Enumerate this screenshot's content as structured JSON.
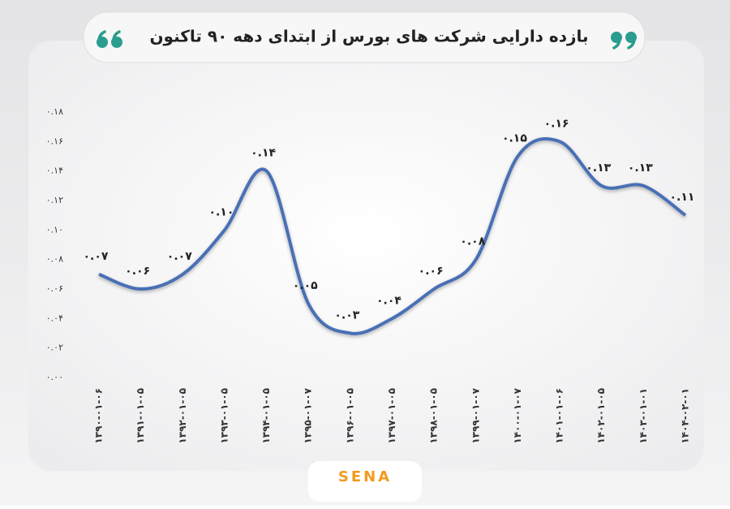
{
  "chart_data": {
    "type": "line",
    "title": "بازده دارایی شرکت های بورس از ابتدای دهه ۹۰ تاکنون",
    "source": "SENA",
    "categories": [
      "۱۳۹۰-۰۱-۰۶",
      "۱۳۹۱-۰۱-۰۵",
      "۱۳۹۲-۰۱-۰۵",
      "۱۳۹۳-۰۱-۰۵",
      "۱۳۹۴-۰۱-۰۵",
      "۱۳۹۵-۰۱-۰۷",
      "۱۳۹۶-۰۱-۰۵",
      "۱۳۹۷-۰۱-۰۵",
      "۱۳۹۸-۰۱-۰۵",
      "۱۳۹۹-۰۱-۰۷",
      "۱۴۰۰-۰۱-۰۷",
      "۱۴۰۱-۰۱-۰۶",
      "۱۴۰۲-۰۱-۰۵",
      "۱۴۰۳-۰۱-۰۱",
      "۱۴۰۴-۰۲-۰۱"
    ],
    "values": [
      0.07,
      0.06,
      0.07,
      0.1,
      0.14,
      0.05,
      0.03,
      0.04,
      0.06,
      0.08,
      0.15,
      0.16,
      0.13,
      0.13,
      0.11
    ],
    "value_labels": [
      "۰.۰۷",
      "۰.۰۶",
      "۰.۰۷",
      "۰.۱۰",
      "۰.۱۴",
      "۰.۰۵",
      "۰.۰۳",
      "۰.۰۴",
      "۰.۰۶",
      "۰.۰۸",
      "۰.۱۵",
      "۰.۱۶",
      "۰.۱۳",
      "۰.۱۳",
      "۰.۱۱"
    ],
    "color": "#4a6fb5",
    "ylim": [
      0,
      0.18
    ],
    "yticks": [
      {
        "value": 0,
        "label": "۰.۰۰"
      },
      {
        "value": 0.02,
        "label": "۰.۰۲"
      },
      {
        "value": 0.04,
        "label": "۰.۰۴"
      },
      {
        "value": 0.06,
        "label": "۰.۰۶"
      },
      {
        "value": 0.08,
        "label": "۰.۰۸"
      },
      {
        "value": 0.1,
        "label": "۰.۱۰"
      },
      {
        "value": 0.12,
        "label": "۰.۱۲"
      },
      {
        "value": 0.14,
        "label": "۰.۱۴"
      },
      {
        "value": 0.16,
        "label": "۰.۱۶"
      },
      {
        "value": 0.18,
        "label": "۰.۱۸"
      }
    ]
  }
}
